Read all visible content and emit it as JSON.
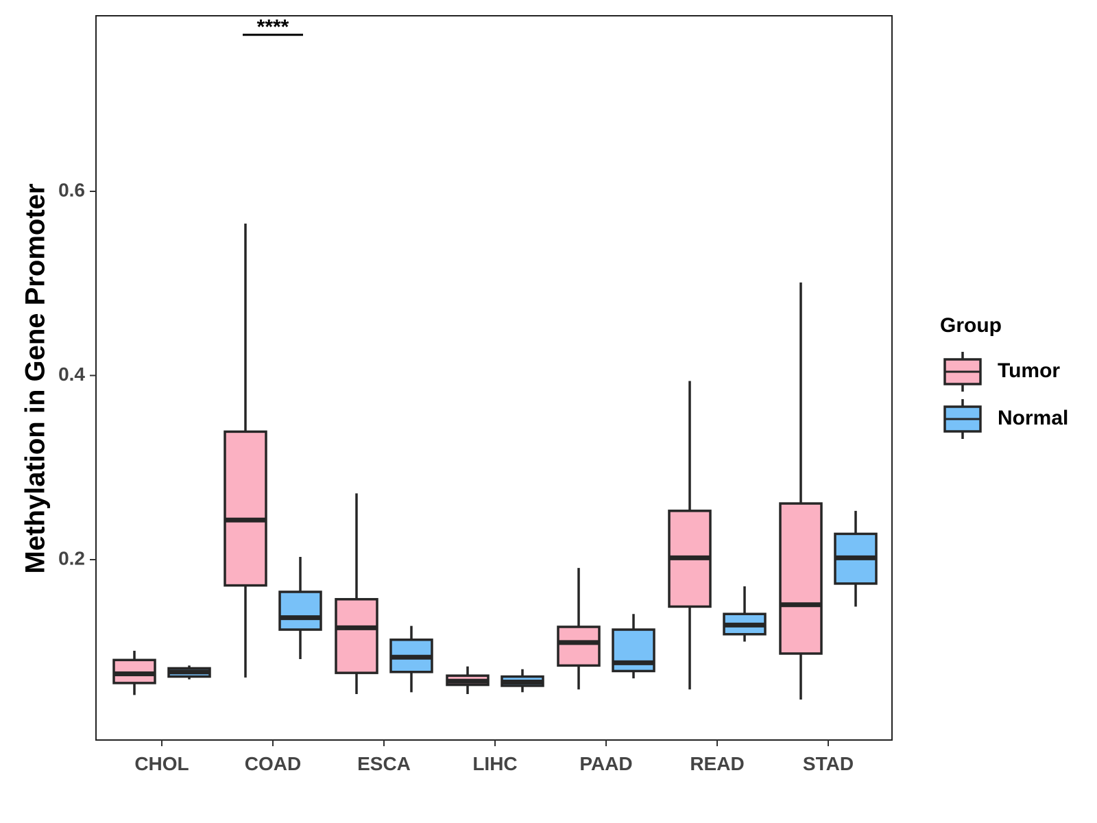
{
  "chart_data": {
    "type": "boxplot",
    "ylabel": "Methylation in Gene Promoter",
    "xlabel": "",
    "ylim": [
      0.02,
      0.81
    ],
    "yticks": [
      0.2,
      0.4,
      0.6
    ],
    "ytick_labels": [
      "0.2",
      "0.4",
      "0.6"
    ],
    "categories": [
      "CHOL",
      "COAD",
      "ESCA",
      "LIHC",
      "PAAD",
      "READ",
      "STAD"
    ],
    "legend": {
      "title": "Group",
      "position": "right",
      "entries": [
        {
          "name": "Tumor",
          "color": "#fbb1c2"
        },
        {
          "name": "Normal",
          "color": "#78c1f8"
        }
      ]
    },
    "series": [
      {
        "name": "Tumor",
        "color": "#fbb1c2",
        "boxes": [
          {
            "min": 0.053,
            "q1": 0.066,
            "median": 0.076,
            "q3": 0.091,
            "max": 0.101
          },
          {
            "min": 0.072,
            "q1": 0.172,
            "median": 0.243,
            "q3": 0.339,
            "max": 0.565
          },
          {
            "min": 0.054,
            "q1": 0.077,
            "median": 0.126,
            "q3": 0.157,
            "max": 0.272
          },
          {
            "min": 0.054,
            "q1": 0.064,
            "median": 0.068,
            "q3": 0.074,
            "max": 0.084
          },
          {
            "min": 0.059,
            "q1": 0.085,
            "median": 0.11,
            "q3": 0.127,
            "max": 0.191
          },
          {
            "min": 0.059,
            "q1": 0.149,
            "median": 0.202,
            "q3": 0.253,
            "max": 0.394
          },
          {
            "min": 0.048,
            "q1": 0.098,
            "median": 0.151,
            "q3": 0.261,
            "max": 0.501
          }
        ]
      },
      {
        "name": "Normal",
        "color": "#78c1f8",
        "boxes": [
          {
            "min": 0.07,
            "q1": 0.073,
            "median": 0.078,
            "q3": 0.082,
            "max": 0.085
          },
          {
            "min": 0.092,
            "q1": 0.124,
            "median": 0.137,
            "q3": 0.165,
            "max": 0.203
          },
          {
            "min": 0.056,
            "q1": 0.078,
            "median": 0.094,
            "q3": 0.113,
            "max": 0.128
          },
          {
            "min": 0.056,
            "q1": 0.063,
            "median": 0.067,
            "q3": 0.073,
            "max": 0.081
          },
          {
            "min": 0.071,
            "q1": 0.079,
            "median": 0.088,
            "q3": 0.124,
            "max": 0.141
          },
          {
            "min": 0.111,
            "q1": 0.119,
            "median": 0.129,
            "q3": 0.141,
            "max": 0.171
          },
          {
            "min": 0.149,
            "q1": 0.174,
            "median": 0.202,
            "q3": 0.228,
            "max": 0.253
          }
        ]
      }
    ],
    "annotations": [
      {
        "category": "COAD",
        "label": "****",
        "y": 0.77
      }
    ]
  }
}
